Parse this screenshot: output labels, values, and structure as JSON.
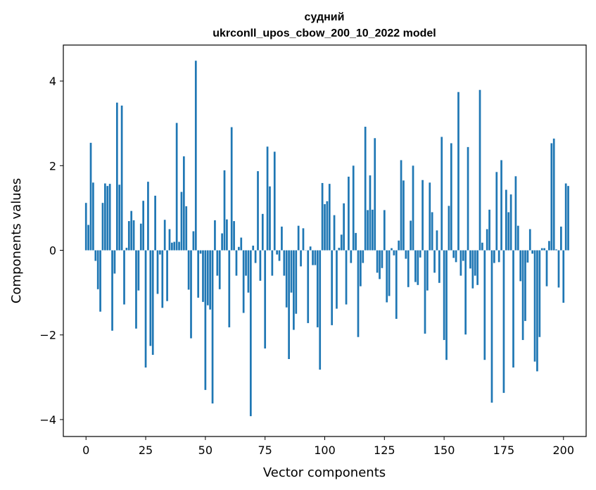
{
  "chart_data": {
    "type": "bar",
    "title_lines": [
      "судний",
      "ukrconll_upos_cbow_200_10_2022 model"
    ],
    "xlabel": "Vector components",
    "ylabel": "Components values",
    "xlim": [
      -9.5,
      209.5
    ],
    "ylim": [
      -4.4,
      4.85
    ],
    "x_ticks": [
      0,
      25,
      50,
      75,
      100,
      125,
      150,
      175,
      200
    ],
    "y_ticks": [
      -4,
      -2,
      0,
      2,
      4
    ],
    "grid": false,
    "legend": "none",
    "bar_color": "#1f77b4",
    "x_start": 0,
    "values": [
      1.12,
      0.6,
      2.54,
      1.6,
      -0.25,
      -0.92,
      -1.45,
      1.12,
      1.58,
      1.52,
      1.57,
      -1.9,
      -0.55,
      3.49,
      1.55,
      3.42,
      -1.28,
      0.06,
      0.69,
      0.93,
      0.71,
      -1.85,
      -0.95,
      0.63,
      1.17,
      -2.77,
      1.62,
      -2.26,
      -2.47,
      1.29,
      -1.03,
      -0.1,
      -1.36,
      0.72,
      -1.2,
      0.5,
      0.18,
      0.2,
      3.01,
      0.2,
      1.38,
      2.22,
      1.04,
      -0.93,
      -2.08,
      0.45,
      4.48,
      -1.12,
      -0.08,
      -1.22,
      -3.3,
      -1.3,
      -1.4,
      -3.62,
      0.71,
      -0.6,
      -0.92,
      0.4,
      1.89,
      0.73,
      -1.82,
      2.91,
      0.69,
      -0.6,
      0.08,
      0.3,
      -1.48,
      -0.6,
      -1.0,
      -3.92,
      0.11,
      -0.3,
      1.87,
      -0.72,
      0.86,
      -2.32,
      2.45,
      1.51,
      -0.6,
      2.33,
      -0.1,
      -0.25,
      0.56,
      -0.6,
      -1.35,
      -2.57,
      -1.0,
      -1.88,
      -1.5,
      0.58,
      -0.38,
      0.52,
      0.0,
      -1.72,
      0.09,
      -0.35,
      -0.35,
      -1.82,
      -2.82,
      1.59,
      1.09,
      1.16,
      1.57,
      -1.77,
      0.83,
      -1.38,
      0.06,
      0.37,
      1.11,
      -1.28,
      1.74,
      -0.3,
      2.0,
      0.41,
      -2.05,
      -0.85,
      -0.3,
      2.92,
      0.95,
      1.77,
      0.96,
      2.65,
      -0.53,
      -0.68,
      -0.42,
      0.95,
      -1.23,
      -1.08,
      0.05,
      -0.12,
      -1.62,
      0.23,
      2.13,
      1.65,
      -0.2,
      -0.87,
      0.7,
      2.0,
      -0.75,
      -0.82,
      -0.17,
      1.66,
      -1.97,
      -0.95,
      1.6,
      0.9,
      -0.53,
      0.47,
      -0.77,
      2.68,
      -2.12,
      -2.59,
      1.05,
      2.53,
      -0.18,
      -0.28,
      3.74,
      -0.6,
      -0.25,
      -1.99,
      2.44,
      -0.43,
      -0.9,
      -0.6,
      -0.82,
      3.79,
      0.18,
      -2.59,
      0.5,
      0.96,
      -3.6,
      -0.3,
      1.85,
      -0.28,
      2.13,
      -3.37,
      1.43,
      0.9,
      1.32,
      -2.77,
      1.75,
      0.58,
      -0.73,
      -2.12,
      -1.67,
      -0.29,
      0.5,
      -0.08,
      -2.63,
      -2.86,
      -2.05,
      0.05,
      0.05,
      -0.85,
      0.22,
      2.53,
      2.64,
      0.02,
      -0.88,
      0.56,
      -1.24,
      1.58,
      1.52
    ]
  }
}
